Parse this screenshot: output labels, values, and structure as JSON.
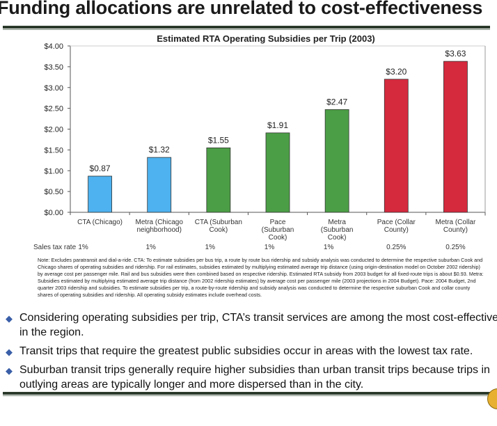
{
  "slide": {
    "title": "Funding allocations are unrelated to cost-effectiveness",
    "note": "Note: Excludes paratransit and dial-a-ride. CTA: To estimate subsidies per bus trip, a route by route bus ridership and subsidy analysis was conducted to determine the respective suburban Cook and Chicago shares of operating subsidies and ridership. For rail estimates, subsidies estimated by multiplying estimated average trip distance (using origin-destination model on October 2002 ridership) by average cost per passenger mile. Rail and bus subsidies were then combined based on respective ridership. Estimated RTA subsidy from 2003 budget for all fixed-route trips is about $0.93. Metra: Subsidies estimated by multiplying estimated average trip distance (from 2002 ridership estimates) by average cost per passenger mile (2003 projections in 2004 Budget). Pace: 2004 Budget, 2nd quarter 2003 ridership and subsidies. To estimate subsidies per trip, a route-by-route ridership and subsidy analysis was conducted to determine the respective suburban Cook and collar county shares of operating subsidies and ridership. All operating subsidy estimates include overhead costs.",
    "bullets": [
      "Considering operating subsidies per trip, CTA’s transit services are among the most cost-effective in the region.",
      "Transit trips that require the greatest public subsidies occur in areas with the lowest tax rate.",
      "Suburban transit trips generally require higher subsidies than urban transit trips because trips in outlying areas are typically longer and more dispersed than in the city."
    ],
    "bullet_icon": "diamond-bullet-icon"
  },
  "chart_data": {
    "type": "bar",
    "title": "Estimated RTA Operating Subsidies per Trip (2003)",
    "categories": [
      "CTA (Chicago)",
      "Metra (Chicago\nneighborhood)",
      "CTA (Suburban\nCook)",
      "Pace\n(Suburban\nCook)",
      "Metra\n(Suburban\nCook)",
      "Pace (Collar\nCounty)",
      "Metra (Collar\nCounty)"
    ],
    "values": [
      0.87,
      1.32,
      1.55,
      1.91,
      2.47,
      3.2,
      3.63
    ],
    "data_labels": [
      "$0.87",
      "$1.32",
      "$1.55",
      "$1.91",
      "$2.47",
      "$3.20",
      "$3.63"
    ],
    "bar_colors": [
      "#4db2ef",
      "#4db2ef",
      "#4c9e46",
      "#4c9e46",
      "#4c9e46",
      "#d52a3e",
      "#d52a3e"
    ],
    "yticks": [
      "$0.00",
      "$0.50",
      "$1.00",
      "$1.50",
      "$2.00",
      "$2.50",
      "$3.00",
      "$3.50",
      "$4.00"
    ],
    "ylim": [
      0,
      4
    ],
    "grid": false,
    "legend": "none",
    "sales_tax_label": "Sales tax rate",
    "sales_tax_rates": [
      "1%",
      "1%",
      "1%",
      "1%",
      "1%",
      "0.25%",
      "0.25%"
    ]
  }
}
